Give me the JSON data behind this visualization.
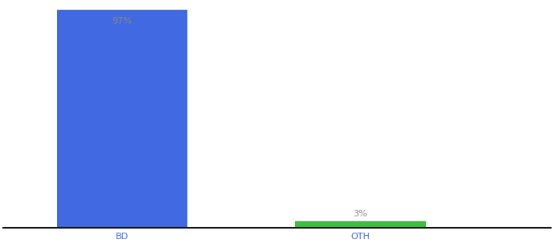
{
  "categories": [
    "BD",
    "OTH"
  ],
  "values": [
    97,
    3
  ],
  "bar_colors": [
    "#4169e1",
    "#3dbf3d"
  ],
  "labels": [
    "97%",
    "3%"
  ],
  "label_color": "#888888",
  "background_color": "#ffffff",
  "ylim": [
    0,
    100
  ],
  "bar_width": 0.55,
  "label_fontsize": 8,
  "tick_fontsize": 8,
  "tick_color": "#4169e1",
  "axis_line_color": "#111111",
  "xlim": [
    -0.5,
    1.8
  ]
}
